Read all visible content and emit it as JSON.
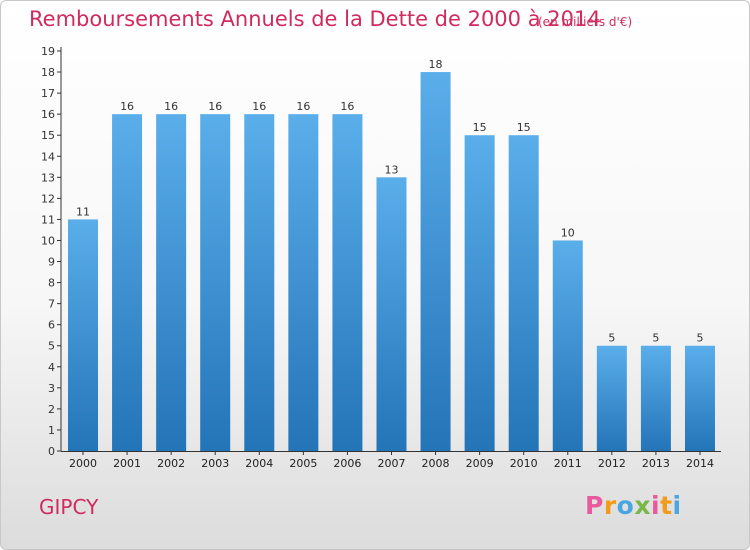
{
  "title": "Remboursements Annuels de la Dette de 2000 à 2014",
  "subtitle": "(en milliers d'€)",
  "commune": "GIPCY",
  "logo": "Proxiti",
  "logo_colors": [
    "#e85a9b",
    "#f29b1a",
    "#4aa6e0",
    "#7ab648",
    "#e85a9b",
    "#f29b1a",
    "#4aa6e0"
  ],
  "colors": {
    "title": "#d12a5e",
    "bar_light": "#5aaeea",
    "bar_dark": "#2474b8"
  },
  "chart_data": {
    "type": "bar",
    "categories": [
      "2000",
      "2001",
      "2002",
      "2003",
      "2004",
      "2005",
      "2006",
      "2007",
      "2008",
      "2009",
      "2010",
      "2011",
      "2012",
      "2013",
      "2014"
    ],
    "values": [
      11,
      16,
      16,
      16,
      16,
      16,
      16,
      13,
      18,
      15,
      15,
      10,
      5,
      5,
      5
    ],
    "ylim": [
      0,
      19
    ],
    "yticks": [
      0,
      1,
      2,
      3,
      4,
      5,
      6,
      7,
      8,
      9,
      10,
      11,
      12,
      13,
      14,
      15,
      16,
      17,
      18,
      19
    ],
    "grid": false,
    "data_labels": true
  }
}
